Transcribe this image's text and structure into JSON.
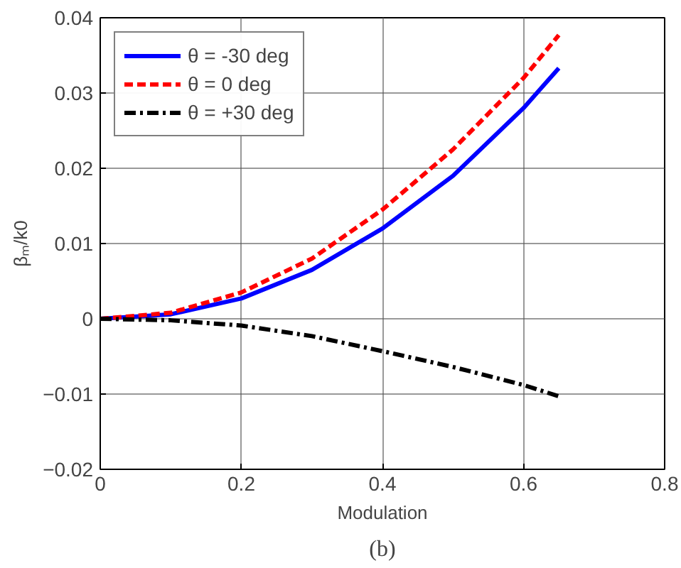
{
  "chart_data": {
    "type": "line",
    "xlabel": "Modulation",
    "ylabel": "βₘ/k0",
    "annotations": [
      "(b)"
    ],
    "x": [
      0,
      0.1,
      0.2,
      0.3,
      0.4,
      0.5,
      0.6,
      0.65
    ],
    "series": [
      {
        "name": "θ = -30 deg",
        "color": "#0000ff",
        "line_style": "solid",
        "values": [
          0,
          0.0006,
          0.0027,
          0.0065,
          0.012,
          0.019,
          0.028,
          0.0333
        ]
      },
      {
        "name": "θ = 0 deg",
        "color": "#ff0000",
        "line_style": "dashed",
        "values": [
          0,
          0.0008,
          0.0035,
          0.008,
          0.0145,
          0.0225,
          0.032,
          0.0377
        ]
      },
      {
        "name": "θ = +30 deg",
        "color": "#000000",
        "line_style": "dashdot",
        "values": [
          0,
          -0.0002,
          -0.0009,
          -0.0023,
          -0.0043,
          -0.0064,
          -0.0088,
          -0.0103
        ]
      }
    ],
    "xlim": [
      0,
      0.8
    ],
    "xticks": [
      0,
      0.2,
      0.4,
      0.6,
      0.8
    ],
    "ylim": [
      -0.02,
      0.04
    ],
    "yticks": [
      -0.02,
      -0.01,
      0,
      0.01,
      0.02,
      0.03,
      0.04
    ],
    "grid": true,
    "legend": "top left",
    "marker": "none"
  }
}
